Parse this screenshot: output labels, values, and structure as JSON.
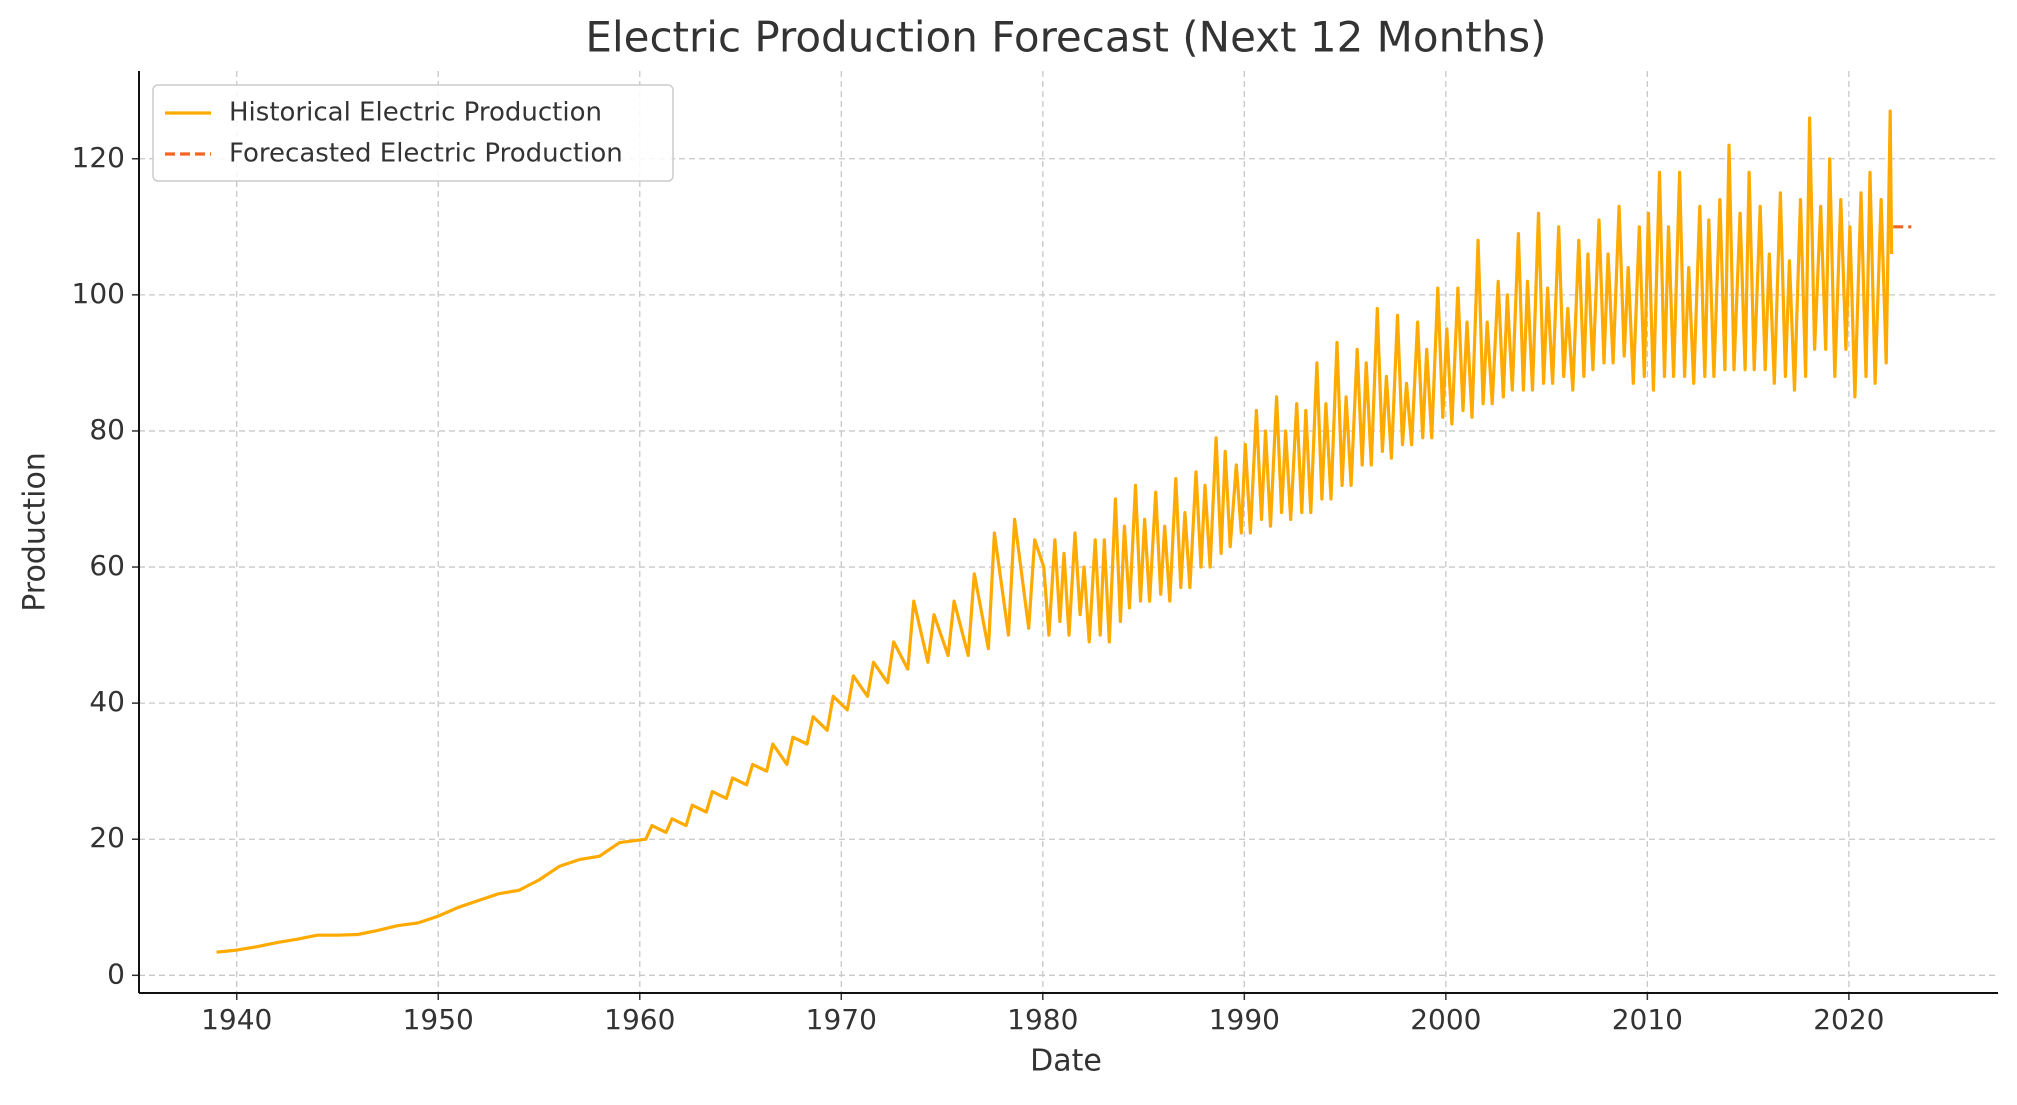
{
  "chart_data": {
    "type": "line",
    "title": "Electric Production Forecast (Next 12 Months)",
    "x_label": "Date",
    "y_label": "Production",
    "xlim": [
      1935.15,
      2027.4
    ],
    "xticks": [
      1940,
      1950,
      1960,
      1970,
      1980,
      1990,
      2000,
      2010,
      2020
    ],
    "ylim": [
      -2.6,
      132.9
    ],
    "yticks": [
      0,
      20,
      40,
      60,
      80,
      100,
      120
    ],
    "grid": true,
    "legend": "upper left",
    "series": [
      {
        "name": "Historical Electric Production",
        "color": "#ffaa00",
        "dash": "solid",
        "x": [
          1939,
          1940,
          1941,
          1942,
          1943,
          1944,
          1945,
          1946,
          1947,
          1948,
          1949,
          1950,
          1951,
          1952,
          1953,
          1954,
          1955,
          1956,
          1957,
          1958,
          1959,
          1960.3,
          1960.6,
          1961.3,
          1961.6,
          1962.3,
          1962.6,
          1963.3,
          1963.6,
          1964.3,
          1964.6,
          1965.3,
          1965.6,
          1966.3,
          1966.6,
          1967.3,
          1967.6,
          1968.3,
          1968.6,
          1969.3,
          1969.6,
          1970.3,
          1970.6,
          1971.3,
          1971.6,
          1972.3,
          1972.6,
          1973.3,
          1973.6,
          1974.3,
          1974.6,
          1975.3,
          1975.6,
          1976.3,
          1976.6,
          1977.3,
          1977.6,
          1978.3,
          1978.6,
          1979.3,
          1979.6,
          1980.05,
          1980.3,
          1980.6,
          1980.85,
          1981.05,
          1981.3,
          1981.6,
          1981.85,
          1982.05,
          1982.3,
          1982.6,
          1982.85,
          1983.05,
          1983.3,
          1983.6,
          1983.85,
          1984.05,
          1984.3,
          1984.6,
          1984.85,
          1985.05,
          1985.3,
          1985.6,
          1985.85,
          1986.05,
          1986.3,
          1986.6,
          1986.85,
          1987.05,
          1987.3,
          1987.6,
          1987.85,
          1988.05,
          1988.3,
          1988.6,
          1988.85,
          1989.05,
          1989.3,
          1989.6,
          1989.85,
          1990.05,
          1990.3,
          1990.6,
          1990.85,
          1991.05,
          1991.3,
          1991.6,
          1991.85,
          1992.05,
          1992.3,
          1992.6,
          1992.85,
          1993.05,
          1993.3,
          1993.6,
          1993.85,
          1994.05,
          1994.3,
          1994.6,
          1994.85,
          1995.05,
          1995.3,
          1995.6,
          1995.85,
          1996.05,
          1996.3,
          1996.6,
          1996.85,
          1997.05,
          1997.3,
          1997.6,
          1997.85,
          1998.05,
          1998.3,
          1998.6,
          1998.85,
          1999.05,
          1999.3,
          1999.6,
          1999.85,
          2000.05,
          2000.3,
          2000.6,
          2000.85,
          2001.05,
          2001.3,
          2001.6,
          2001.85,
          2002.05,
          2002.3,
          2002.6,
          2002.85,
          2003.05,
          2003.3,
          2003.6,
          2003.85,
          2004.05,
          2004.3,
          2004.6,
          2004.85,
          2005.05,
          2005.3,
          2005.6,
          2005.85,
          2006.05,
          2006.3,
          2006.6,
          2006.85,
          2007.05,
          2007.3,
          2007.6,
          2007.85,
          2008.05,
          2008.3,
          2008.6,
          2008.85,
          2009.05,
          2009.3,
          2009.6,
          2009.85,
          2010.05,
          2010.3,
          2010.6,
          2010.85,
          2011.05,
          2011.3,
          2011.6,
          2011.85,
          2012.05,
          2012.3,
          2012.6,
          2012.85,
          2013.05,
          2013.3,
          2013.6,
          2013.85,
          2014.05,
          2014.3,
          2014.6,
          2014.85,
          2015.05,
          2015.3,
          2015.6,
          2015.85,
          2016.05,
          2016.3,
          2016.6,
          2016.85,
          2017.05,
          2017.3,
          2017.6,
          2017.85,
          2018.05,
          2018.3,
          2018.6,
          2018.85,
          2019.05,
          2019.3,
          2019.6,
          2019.85,
          2020.05,
          2020.3,
          2020.6,
          2020.85,
          2021.05,
          2021.3,
          2021.6,
          2021.85,
          2022.05,
          2022.12
        ],
        "values": [
          3.4,
          3.7,
          4.2,
          4.8,
          5.3,
          5.9,
          5.9,
          6,
          6.6,
          7.3,
          7.7,
          8.7,
          10,
          11,
          12,
          12.5,
          14,
          16,
          17,
          17.5,
          19.5,
          20,
          22,
          21,
          23,
          22,
          25,
          24,
          27,
          26,
          29,
          28,
          31,
          30,
          34,
          31,
          35,
          34,
          38,
          36,
          41,
          39,
          44,
          41,
          46,
          43,
          49,
          45,
          55,
          46,
          53,
          47,
          55,
          47,
          59,
          48,
          65,
          50,
          67,
          51,
          64,
          60,
          50,
          64,
          52,
          62,
          50,
          65,
          53,
          60,
          49,
          64,
          50,
          64,
          49,
          70,
          52,
          66,
          54,
          72,
          55,
          67,
          55,
          71,
          56,
          66,
          55,
          73,
          57,
          68,
          57,
          74,
          60,
          72,
          60,
          79,
          62,
          77,
          63,
          75,
          65,
          78,
          65,
          83,
          67,
          80,
          66,
          85,
          68,
          80,
          67,
          84,
          68,
          83,
          68,
          90,
          70,
          84,
          70,
          93,
          72,
          85,
          72,
          92,
          75,
          90,
          75,
          98,
          77,
          88,
          76,
          97,
          78,
          87,
          78,
          96,
          79,
          92,
          79,
          101,
          82,
          95,
          81,
          101,
          83,
          96,
          82,
          108,
          84,
          96,
          84,
          102,
          85,
          100,
          86,
          109,
          86,
          102,
          86,
          112,
          87,
          101,
          87,
          110,
          88,
          98,
          86,
          108,
          88,
          106,
          89,
          111,
          90,
          106,
          90,
          113,
          91,
          104,
          87,
          110,
          88,
          112,
          86,
          118,
          88,
          110,
          88,
          118,
          88,
          104,
          87,
          113,
          88,
          111,
          88,
          114,
          89,
          122,
          89,
          112,
          89,
          118,
          89,
          113,
          89,
          106,
          87,
          115,
          88,
          105,
          86,
          114,
          88,
          126,
          92,
          113,
          92,
          120,
          88,
          114,
          92,
          110,
          85,
          115,
          88,
          118,
          87,
          114,
          90,
          127,
          106
        ]
      },
      {
        "name": "Forecasted Electric Production",
        "color": "#f26522",
        "dash": "dashed",
        "x": [
          2022.2,
          2023.1
        ],
        "values": [
          110,
          110
        ]
      }
    ]
  }
}
